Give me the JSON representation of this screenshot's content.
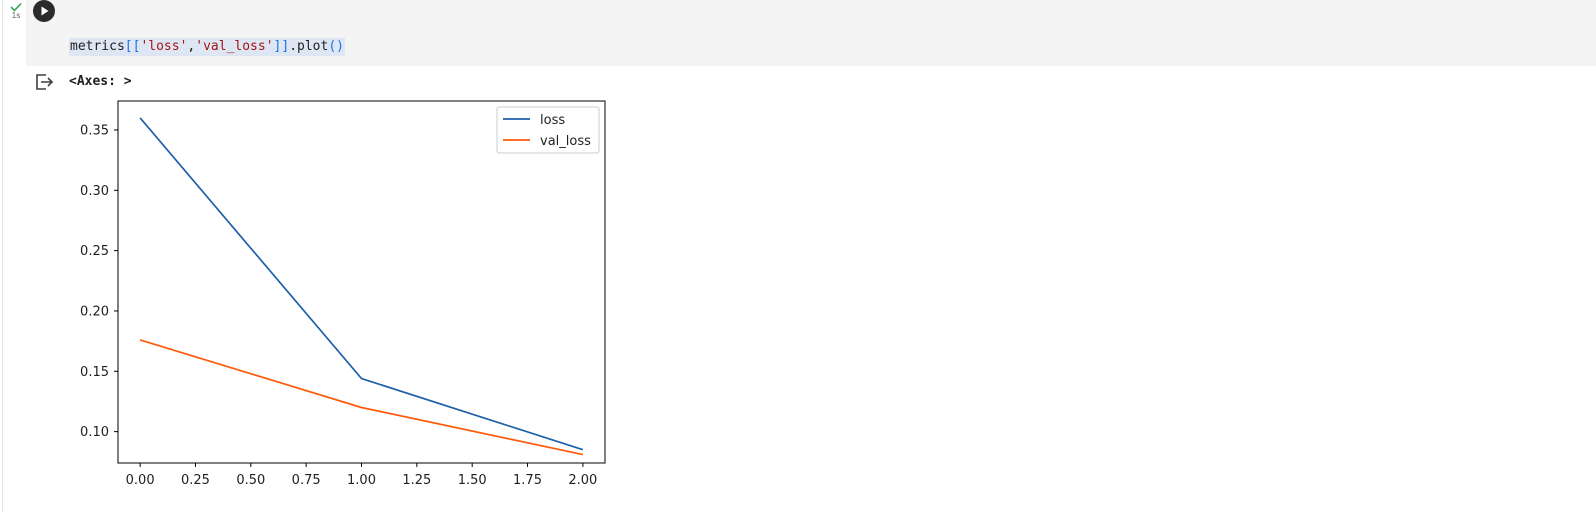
{
  "cell": {
    "exec_time": "1s",
    "code": {
      "tokens": [
        {
          "text": "metrics",
          "kind": "default"
        },
        {
          "text": "[[",
          "kind": "bracket"
        },
        {
          "text": "'loss'",
          "kind": "string"
        },
        {
          "text": ",",
          "kind": "punct"
        },
        {
          "text": "'val_loss'",
          "kind": "string"
        },
        {
          "text": "]]",
          "kind": "bracket"
        },
        {
          "text": ".plot",
          "kind": "default"
        },
        {
          "text": "()",
          "kind": "bracket"
        }
      ]
    },
    "output_repr": "<Axes: >"
  },
  "icons": {
    "status": "check-icon",
    "run": "play-icon",
    "output": "output-redirect-icon"
  },
  "chart_data": {
    "type": "line",
    "x": [
      0,
      1,
      2
    ],
    "series": [
      {
        "name": "loss",
        "values": [
          0.36,
          0.144,
          0.085
        ],
        "color": "#1f5fa8"
      },
      {
        "name": "val_loss",
        "values": [
          0.176,
          0.12,
          0.081
        ],
        "color": "#ff5a0a"
      }
    ],
    "xlim": [
      -0.1,
      2.1
    ],
    "ylim": [
      0.074,
      0.374
    ],
    "xticks": [
      0.0,
      0.25,
      0.5,
      0.75,
      1.0,
      1.25,
      1.5,
      1.75,
      2.0
    ],
    "xtick_labels": [
      "0.00",
      "0.25",
      "0.50",
      "0.75",
      "1.00",
      "1.25",
      "1.50",
      "1.75",
      "2.00"
    ],
    "yticks": [
      0.1,
      0.15,
      0.2,
      0.25,
      0.3,
      0.35
    ],
    "ytick_labels": [
      "0.10",
      "0.15",
      "0.20",
      "0.25",
      "0.30",
      "0.35"
    ],
    "title": "",
    "xlabel": "",
    "ylabel": "",
    "grid": false,
    "legend": "top-right"
  }
}
